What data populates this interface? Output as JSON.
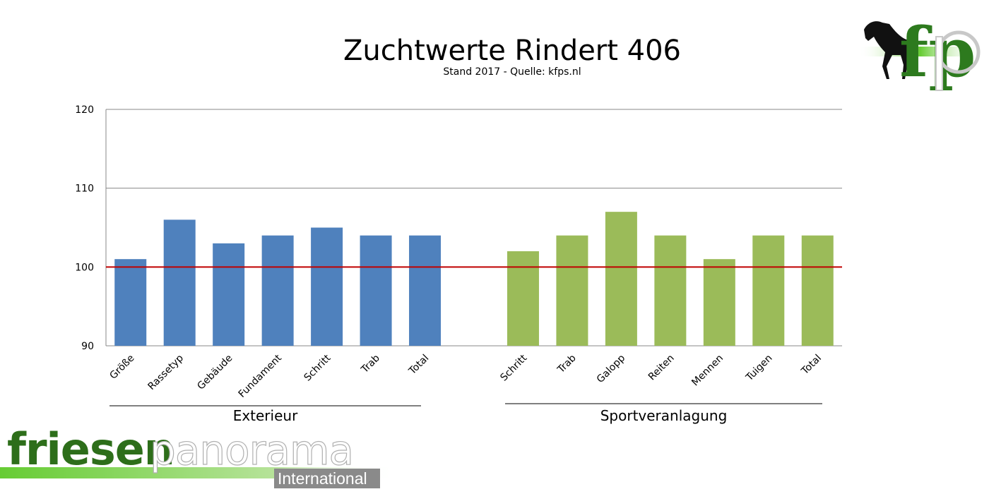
{
  "chart_data": {
    "type": "bar",
    "title": "Zuchtwerte Rindert 406",
    "subtitle": "Stand 2017 - Quelle: kfps.nl",
    "ylim": [
      90,
      120
    ],
    "yticks": [
      90,
      100,
      110,
      120
    ],
    "reference_line": 100,
    "grid": true,
    "groups": [
      {
        "name": "Exterieur",
        "color": "#4f81bd",
        "categories": [
          "Größe",
          "Rassetyp",
          "Gebäude",
          "Fundament",
          "Schritt",
          "Trab",
          "Total"
        ],
        "values": [
          101,
          106,
          103,
          104,
          105,
          104,
          104
        ]
      },
      {
        "name": "Sportveranlagung",
        "color": "#9bbb59",
        "categories": [
          "Schritt",
          "Trab",
          "Galopp",
          "Reiten",
          "Mennen",
          "Tuigen",
          "Total"
        ],
        "values": [
          102,
          104,
          107,
          104,
          101,
          104,
          104
        ]
      }
    ],
    "reference_color": "#c00000"
  },
  "logo": {
    "fp_text": "fp",
    "brand_green": "friesen",
    "brand_white": "panorama",
    "brand_sub": "International"
  }
}
